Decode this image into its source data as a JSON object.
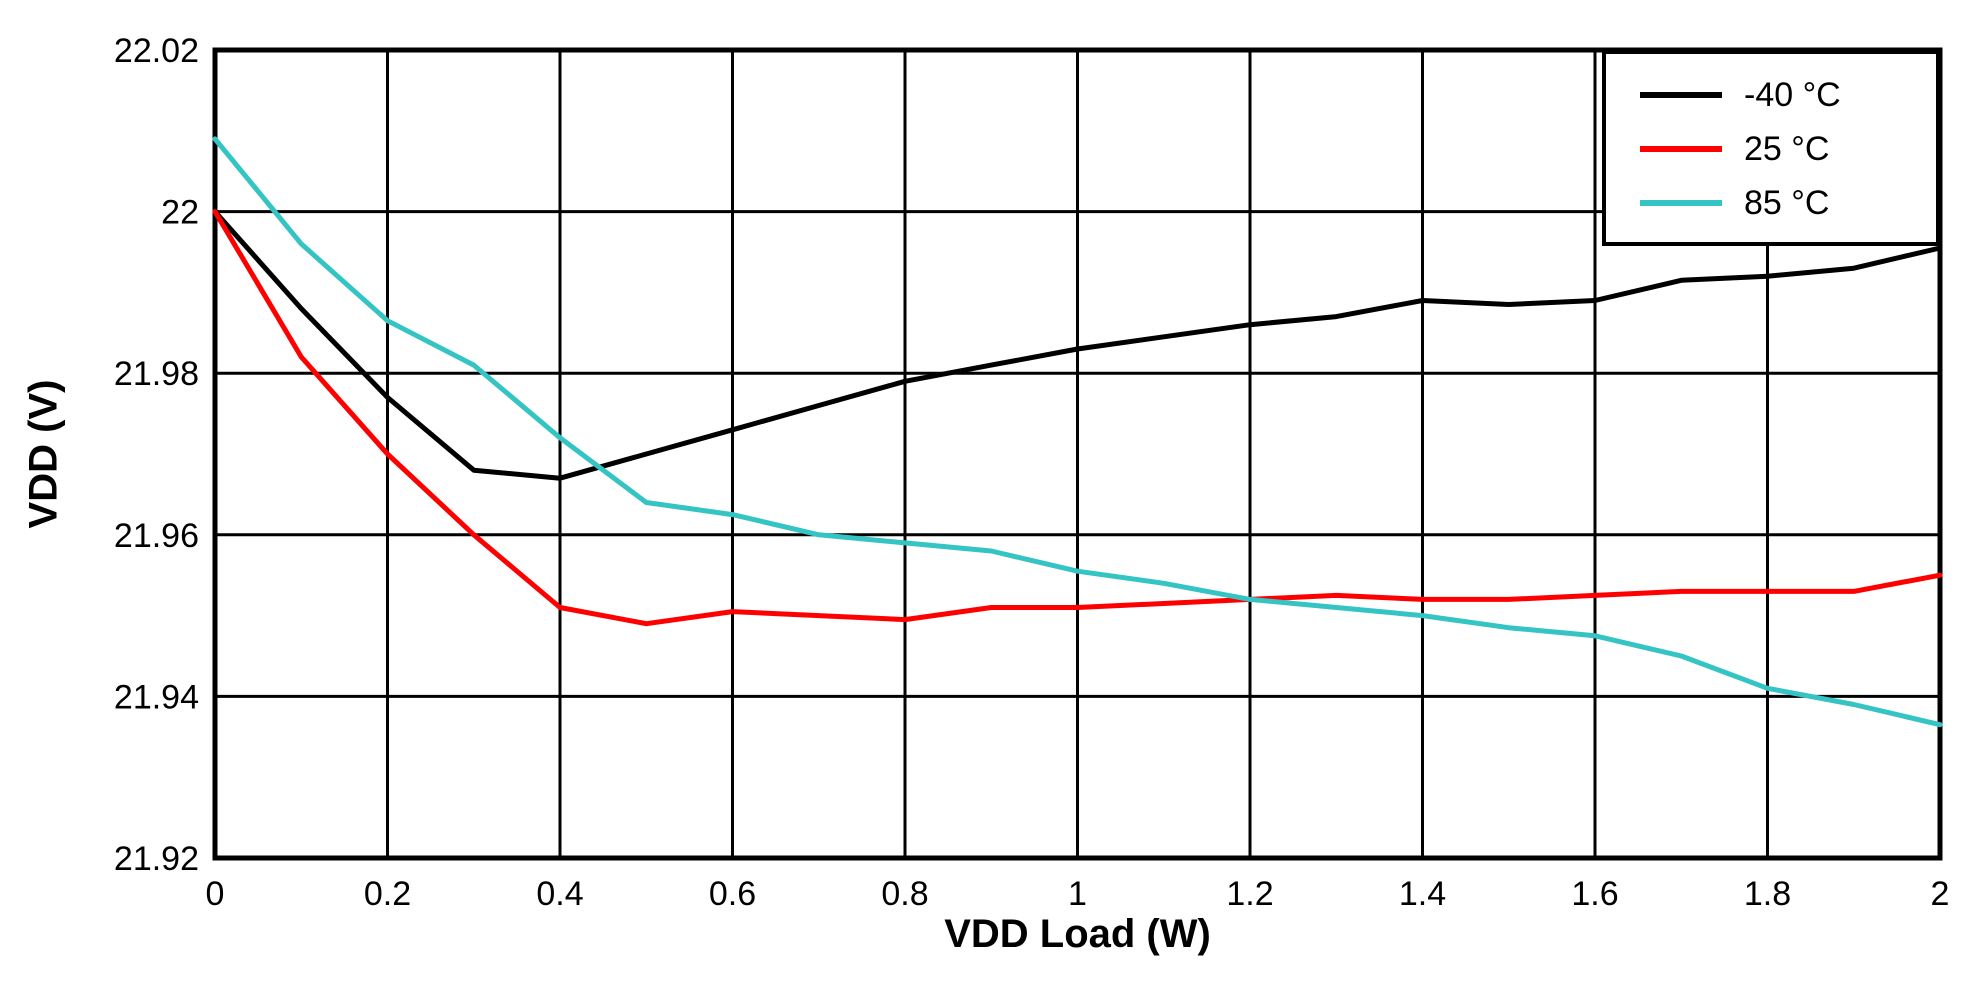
{
  "chart_data": {
    "type": "line",
    "title": "",
    "xlabel": "VDD Load (W)",
    "ylabel": "VDD (V)",
    "xlim": [
      0,
      2
    ],
    "ylim": [
      21.92,
      22.02
    ],
    "grid": true,
    "legend_position": "top-right",
    "xticks": {
      "values": [
        0,
        0.2,
        0.4,
        0.6,
        0.8,
        1,
        1.2,
        1.4,
        1.6,
        1.8,
        2
      ],
      "labels": [
        "0",
        "0.2",
        "0.4",
        "0.6",
        "0.8",
        "1",
        "1.2",
        "1.4",
        "1.6",
        "1.8",
        "2"
      ]
    },
    "yticks": {
      "values": [
        21.92,
        21.94,
        21.96,
        21.98,
        22,
        22.02
      ],
      "labels": [
        "21.92",
        "21.94",
        "21.96",
        "21.98",
        "22",
        "22.02"
      ]
    },
    "x": [
      0,
      0.1,
      0.2,
      0.3,
      0.4,
      0.5,
      0.6,
      0.7,
      0.8,
      0.9,
      1.0,
      1.1,
      1.2,
      1.3,
      1.4,
      1.5,
      1.6,
      1.7,
      1.8,
      1.9,
      2.0
    ],
    "series": [
      {
        "name": "-40 °C",
        "color": "#000000",
        "values": [
          22.0,
          21.988,
          21.977,
          21.968,
          21.967,
          21.97,
          21.973,
          21.976,
          21.979,
          21.981,
          21.983,
          21.9845,
          21.986,
          21.987,
          21.989,
          21.9885,
          21.989,
          21.9915,
          21.992,
          21.993,
          21.9955
        ]
      },
      {
        "name": "25 °C",
        "color": "#ff0000",
        "values": [
          22.0,
          21.982,
          21.97,
          21.96,
          21.951,
          21.949,
          21.9505,
          21.95,
          21.9495,
          21.951,
          21.951,
          21.9515,
          21.952,
          21.9525,
          21.952,
          21.952,
          21.9525,
          21.953,
          21.953,
          21.953,
          21.955
        ]
      },
      {
        "name": "85 °C",
        "color": "#35c4c4",
        "values": [
          22.009,
          21.996,
          21.9865,
          21.981,
          21.972,
          21.964,
          21.9625,
          21.96,
          21.959,
          21.958,
          21.9555,
          21.954,
          21.952,
          21.951,
          21.95,
          21.9485,
          21.9475,
          21.945,
          21.941,
          21.939,
          21.9365
        ]
      }
    ]
  }
}
